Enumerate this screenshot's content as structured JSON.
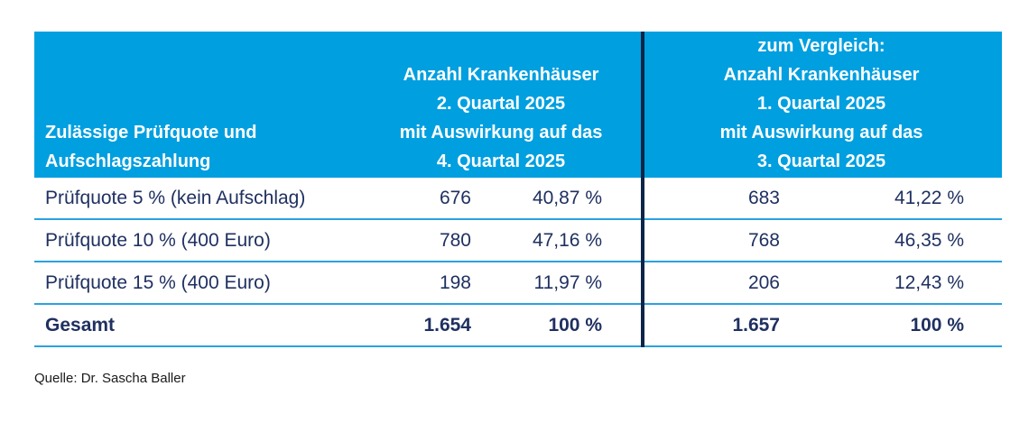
{
  "table": {
    "header": {
      "col1": [
        "Zulässige Prüfquote und",
        "Aufschlagszahlung"
      ],
      "col2": [
        "Anzahl Krankenhäuser",
        "2. Quartal 2025",
        "mit Auswirkung auf das",
        "4. Quartal 2025"
      ],
      "col3": [
        "zum Vergleich:",
        "Anzahl Krankenhäuser",
        "1. Quartal 2025",
        "mit Auswirkung auf das",
        "3. Quartal 2025"
      ]
    },
    "rows": [
      {
        "label": "Prüfquote 5 % (kein Aufschlag)",
        "q2_count": "676",
        "q2_pct": "40,87 %",
        "q1_count": "683",
        "q1_pct": "41,22 %"
      },
      {
        "label": "Prüfquote 10 % (400 Euro)",
        "q2_count": "780",
        "q2_pct": "47,16 %",
        "q1_count": "768",
        "q1_pct": "46,35 %"
      },
      {
        "label": "Prüfquote 15 % (400 Euro)",
        "q2_count": "198",
        "q2_pct": "11,97 %",
        "q1_count": "206",
        "q1_pct": "12,43 %"
      },
      {
        "label": "Gesamt",
        "q2_count": "1.654",
        "q2_pct": "100 %",
        "q1_count": "1.657",
        "q1_pct": "100 %"
      }
    ]
  },
  "footer": {
    "source": "Quelle: Dr. Sascha Baller"
  },
  "colors": {
    "header_bg": "#009fe0",
    "row_separator": "#2ba1e1",
    "body_text": "#1f3061",
    "divider": "#0d2547",
    "header_text": "#ffffff"
  },
  "chart_data": {
    "type": "table",
    "title": "Zulässige Prüfquote und Aufschlagszahlung",
    "row_labels": [
      "Prüfquote 5 % (kein Aufschlag)",
      "Prüfquote 10 % (400 Euro)",
      "Prüfquote 15 % (400 Euro)",
      "Gesamt"
    ],
    "series": [
      {
        "name": "Anzahl Krankenhäuser 2. Quartal 2025 mit Auswirkung auf das 4. Quartal 2025",
        "counts": [
          676,
          780,
          198,
          1654
        ],
        "percent": [
          40.87,
          47.16,
          11.97,
          100
        ]
      },
      {
        "name": "zum Vergleich: Anzahl Krankenhäuser 1. Quartal 2025 mit Auswirkung auf das 3. Quartal 2025",
        "counts": [
          683,
          768,
          206,
          1657
        ],
        "percent": [
          41.22,
          46.35,
          12.43,
          100
        ]
      }
    ],
    "source": "Quelle: Dr. Sascha Baller"
  }
}
